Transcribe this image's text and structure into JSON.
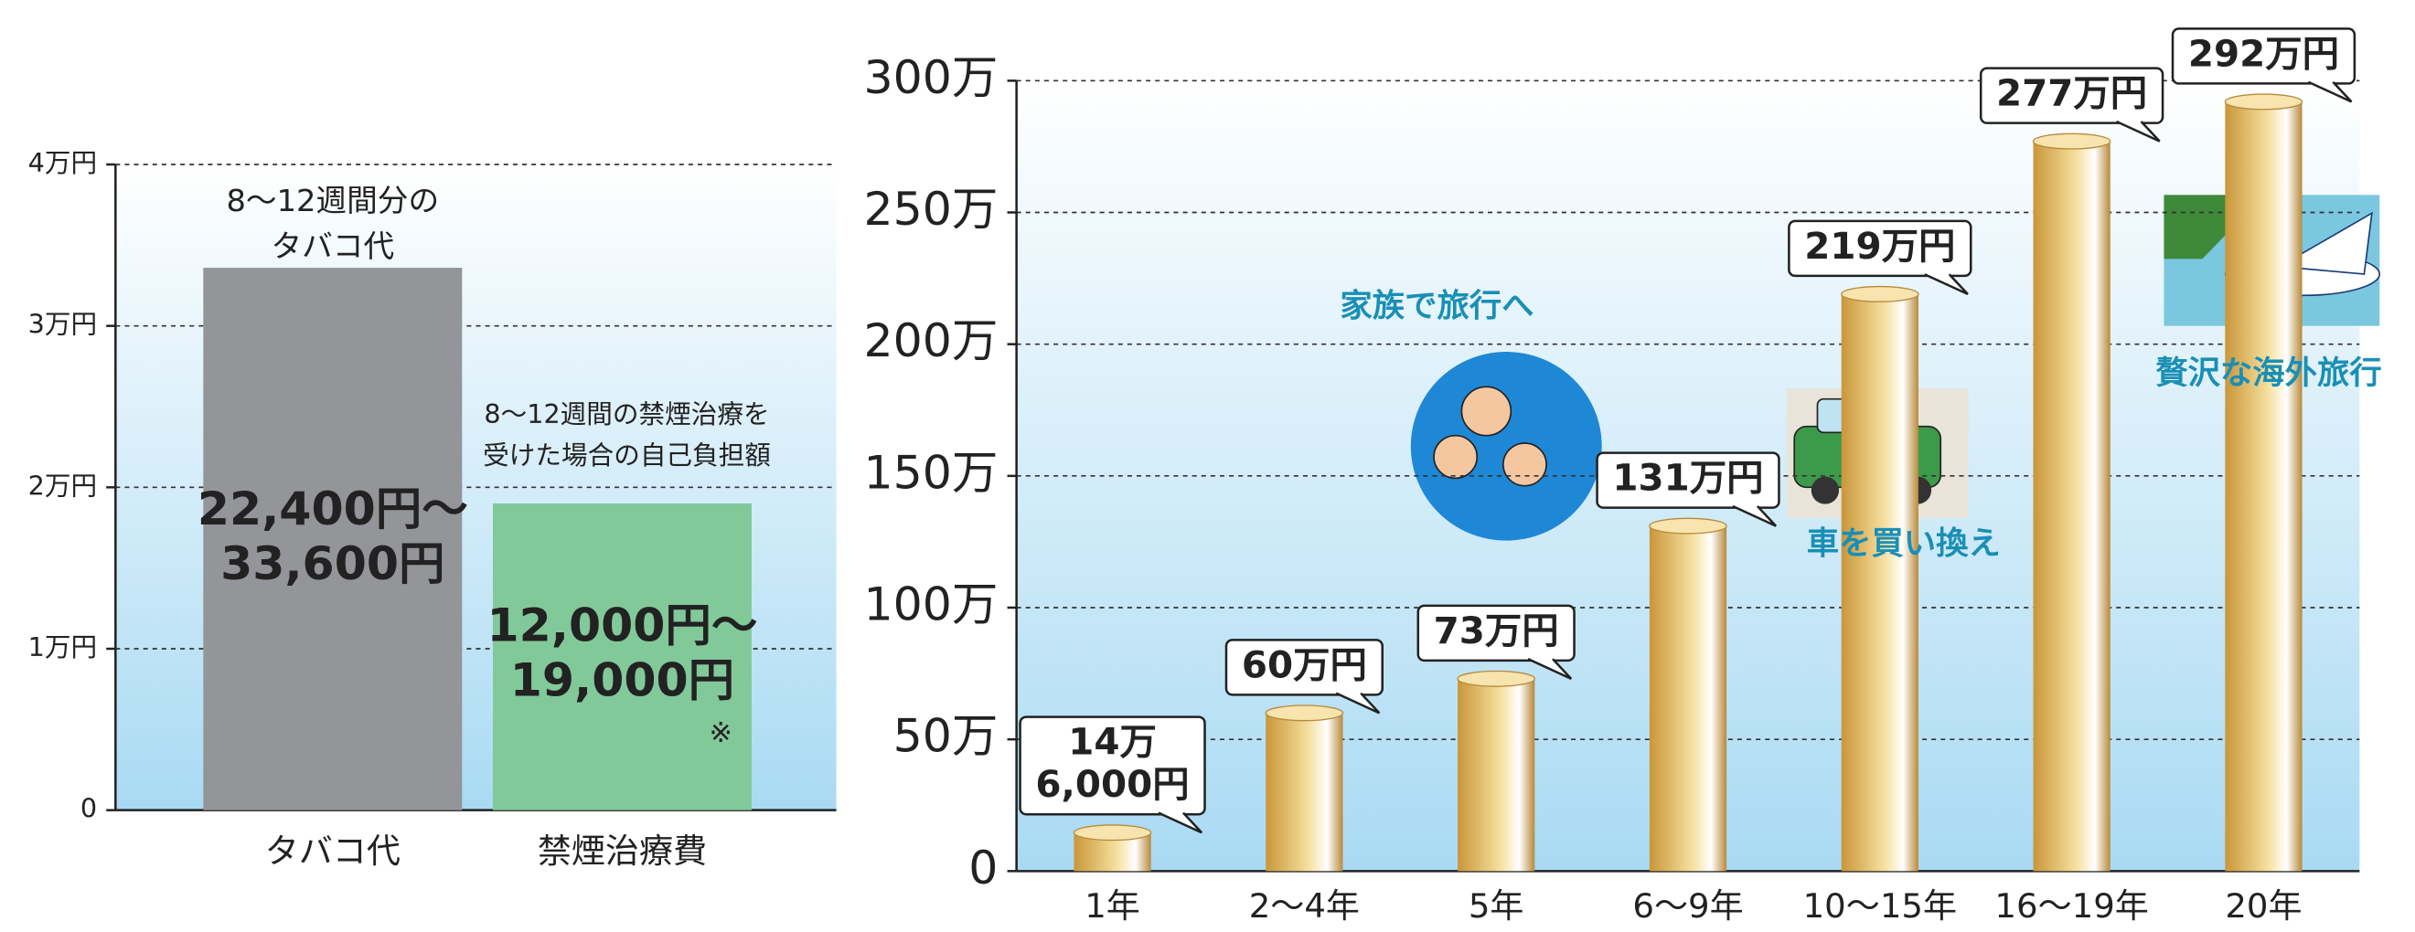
{
  "chart_data": [
    {
      "type": "bar",
      "categories": [
        "タバコ代",
        "禁煙治療費"
      ],
      "values": [
        33600,
        19000
      ],
      "value_labels": [
        [
          "22,400円～",
          "33,600円"
        ],
        [
          "12,000円～",
          "19,000円"
        ]
      ],
      "colors": [
        "#939598",
        "#82c99a"
      ],
      "ylim": [
        0,
        40000
      ],
      "yticks": [
        0,
        {
          "value": 10000,
          "label": "1万円"
        },
        {
          "value": 20000,
          "label": "2万円"
        },
        {
          "value": 30000,
          "label": "3万円"
        },
        {
          "value": 40000,
          "label": "4万円"
        }
      ],
      "grid": true,
      "annotations": [
        [
          "8～12週間分の",
          "タバコ代"
        ],
        [
          "8～12週間の禁煙治療を",
          "受けた場合の自己負担額"
        ],
        "※"
      ]
    },
    {
      "type": "bar",
      "categories": [
        "1年",
        "2～4年",
        "5年",
        "6～9年",
        "10～15年",
        "16～19年",
        "20年"
      ],
      "values": [
        14.6,
        60,
        73,
        131,
        219,
        277,
        292
      ],
      "value_labels": [
        [
          "14万",
          "6,000円"
        ],
        [
          "60万円"
        ],
        [
          "73万円"
        ],
        [
          "131万円"
        ],
        [
          "219万円"
        ],
        [
          "277万円"
        ],
        [
          "292万円"
        ]
      ],
      "color": "#e3b85a",
      "ylim": [
        0,
        300
      ],
      "yticks": [
        0,
        {
          "value": 50,
          "label": "50万"
        },
        {
          "value": 100,
          "label": "100万"
        },
        {
          "value": 150,
          "label": "150万"
        },
        {
          "value": 200,
          "label": "200万"
        },
        {
          "value": 250,
          "label": "250万"
        },
        {
          "value": 300,
          "label": "300万"
        }
      ],
      "grid": true,
      "annotations": [
        "家族で旅行へ",
        "車を買い換え",
        "贅沢な海外旅行"
      ]
    }
  ]
}
